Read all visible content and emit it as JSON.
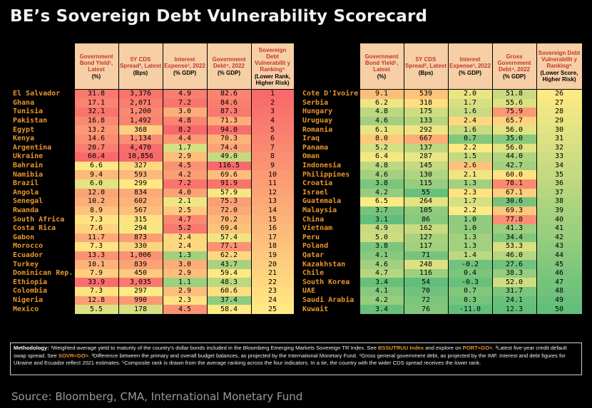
{
  "title": "BE’s Sovereign Debt Vulnerability Scorecard",
  "headers_left": [
    {
      "main": "Government Bond Yield¹, Latest",
      "sub": "(%)"
    },
    {
      "main": "5Y CDS Spread², Latest",
      "sub": "(Bps)"
    },
    {
      "main": "Interest Expense³, 2022",
      "sub": "(% GDP)"
    },
    {
      "main": "Government Debt⁴, 2022",
      "sub": "(% GDP)"
    },
    {
      "main": "Sovereign Debt Vulnerabilit y Ranking⁵",
      "sub": "(Lower Rank, Higher Risk)"
    }
  ],
  "headers_right": [
    {
      "main": "Government Bond Yield¹, Latest",
      "sub": "(%)"
    },
    {
      "main": "5Y CDS Spread², Latest",
      "sub": "(Bps)"
    },
    {
      "main": "Interest Expense³, 2022",
      "sub": "(% GDP)"
    },
    {
      "main": "Gross Government Debt⁴, 2022",
      "sub": "(% GDP)"
    },
    {
      "main": "Sovereign Debt Vulnerabilit y Ranking⁵",
      "sub": "(Lower Score, Higher Risk)"
    }
  ],
  "chart_data": {
    "type": "table",
    "title": "BE’s Sovereign Debt Vulnerability Scorecard",
    "columns": [
      "Government Bond Yield, Latest (%)",
      "5Y CDS Spread, Latest (Bps)",
      "Interest Expense, 2022 (% GDP)",
      "Government Debt, 2022 (% GDP)",
      "Sovereign Debt Vulnerability Ranking"
    ],
    "left_rows": [
      {
        "country": "El Salvador",
        "yield": "31.8",
        "cds": "3,376",
        "interest": "4.9",
        "debt": "82.6",
        "rank": "1"
      },
      {
        "country": "Ghana",
        "yield": "17.1",
        "cds": "2,071",
        "interest": "7.2",
        "debt": "84.6",
        "rank": "2"
      },
      {
        "country": "Tunisia",
        "yield": "32.1",
        "cds": "1,200",
        "interest": "3.0",
        "debt": "87.3",
        "rank": "3"
      },
      {
        "country": "Pakistan",
        "yield": "16.8",
        "cds": "1,492",
        "interest": "4.8",
        "debt": "71.3",
        "rank": "4"
      },
      {
        "country": "Egypt",
        "yield": "13.2",
        "cds": "368",
        "interest": "8.2",
        "debt": "94.0",
        "rank": "5"
      },
      {
        "country": "Kenya",
        "yield": "14.6",
        "cds": "1,134",
        "interest": "4.4",
        "debt": "70.3",
        "rank": "6"
      },
      {
        "country": "Argentina",
        "yield": "20.7",
        "cds": "4,470",
        "interest": "1.7",
        "debt": "74.4",
        "rank": "7"
      },
      {
        "country": "Ukraine",
        "yield": "60.4",
        "cds": "10,856",
        "interest": "2.9",
        "debt": "49.0",
        "rank": "8"
      },
      {
        "country": "Bahrain",
        "yield": "6.6",
        "cds": "327",
        "interest": "4.5",
        "debt": "116.5",
        "rank": "9"
      },
      {
        "country": "Namibia",
        "yield": "9.4",
        "cds": "593",
        "interest": "4.2",
        "debt": "69.6",
        "rank": "10"
      },
      {
        "country": "Brazil",
        "yield": "6.0",
        "cds": "299",
        "interest": "7.2",
        "debt": "91.9",
        "rank": "11"
      },
      {
        "country": "Angola",
        "yield": "12.0",
        "cds": "834",
        "interest": "4.0",
        "debt": "57.9",
        "rank": "12"
      },
      {
        "country": "Senegal",
        "yield": "10.2",
        "cds": "602",
        "interest": "2.1",
        "debt": "75.3",
        "rank": "13"
      },
      {
        "country": "Rwanda",
        "yield": "8.9",
        "cds": "567",
        "interest": "2.5",
        "debt": "72.0",
        "rank": "14"
      },
      {
        "country": "South Africa",
        "yield": "7.3",
        "cds": "315",
        "interest": "4.7",
        "debt": "70.2",
        "rank": "15"
      },
      {
        "country": "Costa Rica",
        "yield": "7.6",
        "cds": "294",
        "interest": "5.2",
        "debt": "69.4",
        "rank": "16"
      },
      {
        "country": "Gabon",
        "yield": "11.7",
        "cds": "873",
        "interest": "2.4",
        "debt": "57.4",
        "rank": "17"
      },
      {
        "country": "Morocco",
        "yield": "7.3",
        "cds": "330",
        "interest": "2.4",
        "debt": "77.1",
        "rank": "18"
      },
      {
        "country": "Ecuador",
        "yield": "13.3",
        "cds": "1,006",
        "interest": "1.3",
        "debt": "62.2",
        "rank": "19"
      },
      {
        "country": "Turkey",
        "yield": "10.1",
        "cds": "839",
        "interest": "3.0",
        "debt": "43.7",
        "rank": "20"
      },
      {
        "country": "Dominican Rep.",
        "yield": "7.9",
        "cds": "450",
        "interest": "2.9",
        "debt": "59.4",
        "rank": "21"
      },
      {
        "country": "Ethiopia",
        "yield": "33.9",
        "cds": "3,035",
        "interest": "1.1",
        "debt": "48.3",
        "rank": "22"
      },
      {
        "country": "Colombia",
        "yield": "7.3",
        "cds": "297",
        "interest": "2.9",
        "debt": "60.6",
        "rank": "23"
      },
      {
        "country": "Nigeria",
        "yield": "12.8",
        "cds": "990",
        "interest": "2.3",
        "debt": "37.4",
        "rank": "24"
      },
      {
        "country": "Mexico",
        "yield": "5.5",
        "cds": "178",
        "interest": "4.5",
        "debt": "58.4",
        "rank": "25"
      }
    ],
    "right_rows": [
      {
        "country": "Cote D'Ivoire",
        "yield": "9.1",
        "cds": "539",
        "interest": "2.0",
        "debt": "51.8",
        "rank": "26"
      },
      {
        "country": "Serbia",
        "yield": "6.2",
        "cds": "318",
        "interest": "1.7",
        "debt": "55.6",
        "rank": "27"
      },
      {
        "country": "Hungary",
        "yield": "4.8",
        "cds": "175",
        "interest": "1.6",
        "debt": "75.9",
        "rank": "28"
      },
      {
        "country": "Uruguay",
        "yield": "4.6",
        "cds": "133",
        "interest": "2.4",
        "debt": "65.7",
        "rank": "29"
      },
      {
        "country": "Romania",
        "yield": "6.1",
        "cds": "292",
        "interest": "1.6",
        "debt": "56.0",
        "rank": "30"
      },
      {
        "country": "Iraq",
        "yield": "8.0",
        "cds": "667",
        "interest": "0.7",
        "debt": "35.0",
        "rank": "31"
      },
      {
        "country": "Panama",
        "yield": "5.2",
        "cds": "137",
        "interest": "2.2",
        "debt": "56.0",
        "rank": "32"
      },
      {
        "country": "Oman",
        "yield": "6.4",
        "cds": "287",
        "interest": "1.5",
        "debt": "44.0",
        "rank": "33"
      },
      {
        "country": "Indonesia",
        "yield": "4.8",
        "cds": "145",
        "interest": "2.6",
        "debt": "42.7",
        "rank": "34"
      },
      {
        "country": "Philippines",
        "yield": "4.6",
        "cds": "130",
        "interest": "2.1",
        "debt": "60.0",
        "rank": "35"
      },
      {
        "country": "Croatia",
        "yield": "3.8",
        "cds": "115",
        "interest": "1.3",
        "debt": "78.1",
        "rank": "36"
      },
      {
        "country": "Israel",
        "yield": "4.2",
        "cds": "55",
        "interest": "2.3",
        "debt": "67.1",
        "rank": "37"
      },
      {
        "country": "Guatemala",
        "yield": "6.5",
        "cds": "264",
        "interest": "1.7",
        "debt": "30.6",
        "rank": "38"
      },
      {
        "country": "Malaysia",
        "yield": "3.7",
        "cds": "105",
        "interest": "2.2",
        "debt": "69.3",
        "rank": "39"
      },
      {
        "country": "China",
        "yield": "3.1",
        "cds": "86",
        "interest": "1.0",
        "debt": "77.8",
        "rank": "40"
      },
      {
        "country": "Vietnam",
        "yield": "4.9",
        "cds": "162",
        "interest": "1.0",
        "debt": "41.3",
        "rank": "41"
      },
      {
        "country": "Peru",
        "yield": "5.0",
        "cds": "127",
        "interest": "1.3",
        "debt": "34.4",
        "rank": "42"
      },
      {
        "country": "Poland",
        "yield": "3.8",
        "cds": "117",
        "interest": "1.3",
        "debt": "53.3",
        "rank": "43"
      },
      {
        "country": "Qatar",
        "yield": "4.1",
        "cds": "71",
        "interest": "1.4",
        "debt": "46.0",
        "rank": "44"
      },
      {
        "country": "Kazakhstan",
        "yield": "4.6",
        "cds": "248",
        "interest": "-0.2",
        "debt": "27.6",
        "rank": "45"
      },
      {
        "country": "Chile",
        "yield": "4.7",
        "cds": "116",
        "interest": "0.4",
        "debt": "38.3",
        "rank": "46"
      },
      {
        "country": "South Korea",
        "yield": "3.4",
        "cds": "54",
        "interest": "-0.3",
        "debt": "52.0",
        "rank": "47"
      },
      {
        "country": "UAE",
        "yield": "4.1",
        "cds": "70",
        "interest": "0.7",
        "debt": "31.7",
        "rank": "48"
      },
      {
        "country": "Saudi Arabia",
        "yield": "4.2",
        "cds": "72",
        "interest": "0.3",
        "debt": "24.1",
        "rank": "49"
      },
      {
        "country": "Kuwait",
        "yield": "3.4",
        "cds": "76",
        "interest": "-11.0",
        "debt": "12.3",
        "rank": "50"
      }
    ]
  },
  "methodology": {
    "label": "Methodology:",
    "p1": " ¹Weighted-average yield to maturity of the country's dollar bonds included in the Bloomberg Emerging Markets Sovereign TR Index. See ",
    "code1": "BSSUTRUU Index",
    "p2": " and explore on ",
    "code2": "PORT<GO>",
    "p3": ". ²Latest five-year credit default swap spread. See ",
    "code3": "SOVR<GO>",
    "p4": ". ³Difference between the primary and overall budget balances, as projected by the International Monetary Fund. ⁴Gross general government debt, as projected by the IMF. Interest and debt figures for Ukraine and Ecuador reflect 2021 estimates. ⁵Composite rank is drawn from the average ranking across the four indicators. In a tie, the country with the wider CDS spread receives the lower rank."
  },
  "source": "Source: Bloomberg, CMA, International Monetary Fund"
}
